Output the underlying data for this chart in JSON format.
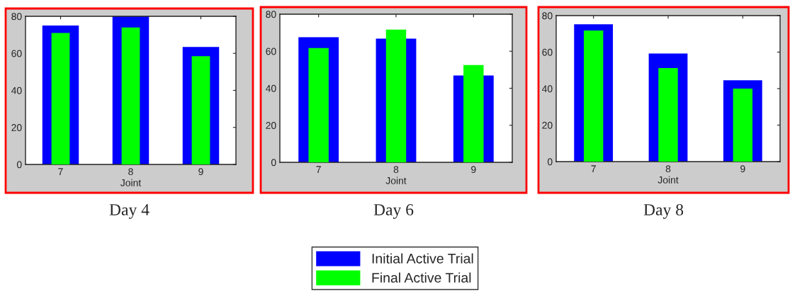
{
  "chart_data": [
    {
      "type": "bar",
      "title": "Day 4",
      "xlabel": "Joint",
      "categories": [
        "7",
        "8",
        "9"
      ],
      "ylim": [
        0,
        80
      ],
      "yticks": [
        0,
        20,
        40,
        60,
        80
      ],
      "grid": false,
      "legend": false,
      "series": [
        {
          "color": "#0000ff",
          "values": [
            75,
            80,
            63.4
          ]
        },
        {
          "color": "#00ff00",
          "values": [
            71,
            74,
            58.5
          ]
        }
      ]
    },
    {
      "type": "bar",
      "title": "Day 6",
      "xlabel": "Joint",
      "categories": [
        "7",
        "8",
        "9"
      ],
      "ylim": [
        0,
        80
      ],
      "yticks": [
        0,
        20,
        40,
        60,
        80
      ],
      "grid": false,
      "legend": "bottom",
      "series": [
        {
          "name": "Initial Active Trial",
          "color": "#0000ff",
          "values": [
            67.6,
            66.8,
            46.9
          ]
        },
        {
          "name": "Final Active Trial",
          "color": "#00ff00",
          "values": [
            61.7,
            71.7,
            52.5
          ]
        }
      ]
    },
    {
      "type": "bar",
      "title": "Day 8",
      "xlabel": "Joint",
      "categories": [
        "7",
        "8",
        "9"
      ],
      "ylim": [
        0,
        80
      ],
      "yticks": [
        0,
        20,
        40,
        60,
        80
      ],
      "grid": false,
      "legend": false,
      "series": [
        {
          "color": "#0000ff",
          "values": [
            75.2,
            59.2,
            44.6
          ]
        },
        {
          "color": "#00ff00",
          "values": [
            71.8,
            51.3,
            40
          ]
        }
      ]
    }
  ]
}
